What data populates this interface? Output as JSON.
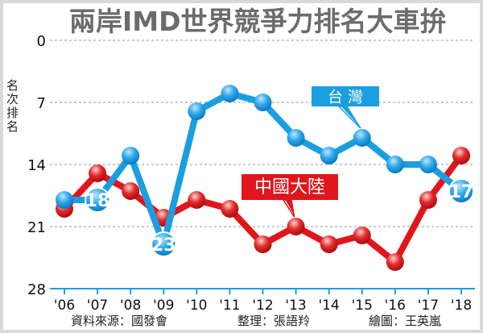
{
  "chart_data": {
    "type": "line",
    "title": "兩岸IMD世界競爭力排名大車拚",
    "ylabel": "名次排名",
    "y_reversed": true,
    "ylim": [
      0,
      28
    ],
    "yticks": [
      "0",
      "7",
      "14",
      "21",
      "28"
    ],
    "grid": true,
    "categories": [
      "'06",
      "'07",
      "'08",
      "'09",
      "'10",
      "'11",
      "'12",
      "'13",
      "'14",
      "'15",
      "'16",
      "'17",
      "'18"
    ],
    "series": [
      {
        "name": "台 灣",
        "color": "#1a9ee0",
        "values": [
          18,
          18,
          13,
          23,
          8,
          6,
          7,
          11,
          13,
          11,
          14,
          14,
          17
        ],
        "labeled_points": {
          "1": "18",
          "3": "23",
          "12": "17"
        },
        "label_at": 9
      },
      {
        "name": "中國大陸",
        "color": "#e0161c",
        "values": [
          19,
          15,
          17,
          20,
          18,
          19,
          23,
          21,
          23,
          22,
          25,
          18,
          13
        ],
        "label_at": 7
      }
    ],
    "footer": {
      "source": "資料來源：國發會",
      "editor": "整理：張語羚",
      "illustrator": "繪圖：王英嵐"
    }
  }
}
